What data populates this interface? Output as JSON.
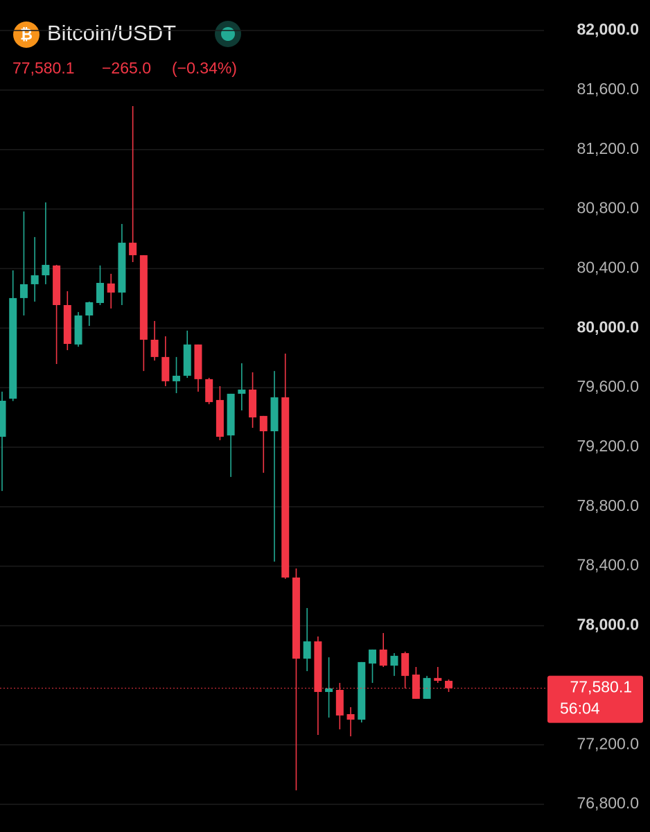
{
  "header": {
    "icon": "₿",
    "symbol": "Bitcoin/USDT",
    "change": "−265.0",
    "change_pct": "(−0.34%)"
  },
  "chart_data": {
    "type": "candlestick",
    "up_color": "#22ab94",
    "down_color": "#f23645",
    "open": [
      79270,
      79526,
      80202,
      80295,
      80355,
      80421,
      80155,
      79890,
      80085,
      80169,
      80300,
      80239,
      80574,
      80490,
      79922,
      79806,
      79643,
      79680,
      79890,
      79657,
      79517,
      79279,
      79559,
      79587,
      79410,
      79307,
      79535,
      78324,
      77779,
      77895,
      77555,
      77569,
      77406,
      77369,
      77746,
      77840,
      77732,
      77816,
      77672,
      77509,
      77649,
      77630
    ],
    "high": [
      79573,
      80388,
      80784,
      80612,
      80845,
      80425,
      80248,
      80108,
      80178,
      80421,
      80365,
      80700,
      81492,
      80490,
      80048,
      79945,
      79806,
      79983,
      79890,
      79666,
      79610,
      79559,
      79764,
      79703,
      79410,
      79712,
      79829,
      78385,
      78119,
      77928,
      77788,
      77616,
      77453,
      77756,
      77840,
      77951,
      77816,
      77826,
      77723,
      77663,
      77723,
      77639
    ],
    "low": [
      78906,
      79510,
      80085,
      80178,
      80295,
      79759,
      79852,
      79875,
      80015,
      80155,
      80132,
      80155,
      80444,
      79712,
      79782,
      79610,
      79563,
      79666,
      79573,
      79489,
      79247,
      79000,
      79447,
      79330,
      79028,
      78431,
      78315,
      76894,
      77695,
      77266,
      77383,
      77304,
      77257,
      77350,
      77616,
      77723,
      77663,
      77579,
      77509,
      77509,
      77616,
      77555
    ],
    "close": [
      79512,
      80202,
      80295,
      80355,
      80425,
      80155,
      79894,
      80085,
      80174,
      80304,
      80239,
      80574,
      80490,
      79922,
      79806,
      79643,
      79680,
      79890,
      79657,
      79503,
      79270,
      79559,
      79587,
      79400,
      79307,
      79535,
      78324,
      77779,
      77895,
      77555,
      77579,
      77397,
      77369,
      77756,
      77840,
      77732,
      77798,
      77663,
      77509,
      77649,
      77630,
      77580.1
    ],
    "ylim": [
      76614,
      82205
    ],
    "yticks": [
      {
        "value": 82000,
        "label": "82,000.0",
        "bold": true
      },
      {
        "value": 81600,
        "label": "81,600.0"
      },
      {
        "value": 81200,
        "label": "81,200.0"
      },
      {
        "value": 80800,
        "label": "80,800.0"
      },
      {
        "value": 80400,
        "label": "80,400.0"
      },
      {
        "value": 80000,
        "label": "80,000.0",
        "bold": true
      },
      {
        "value": 79600,
        "label": "79,600.0"
      },
      {
        "value": 79200,
        "label": "79,200.0"
      },
      {
        "value": 78800,
        "label": "78,800.0"
      },
      {
        "value": 78400,
        "label": "78,400.0"
      },
      {
        "value": 78000,
        "label": "78,000.0",
        "bold": true
      },
      {
        "value": 77200,
        "label": "77,200.0"
      },
      {
        "value": 76800,
        "label": "76,800.0"
      }
    ],
    "grid": true,
    "last_price": {
      "value": 77580.1,
      "label": "77,580.1"
    },
    "countdown": "56:04"
  }
}
